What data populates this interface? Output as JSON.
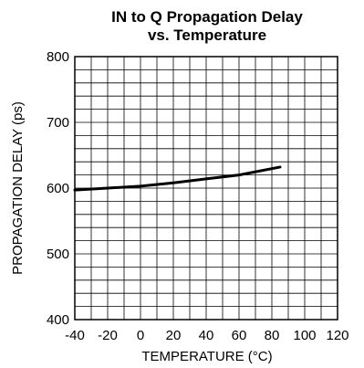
{
  "chart_data": {
    "type": "line",
    "title": "IN to Q Propagation Delay",
    "subtitle": "vs. Temperature",
    "xlabel": "TEMPERATURE (°C)",
    "ylabel": "PROPAGATION DELAY (ps)",
    "xlim": [
      -40,
      120
    ],
    "ylim": [
      400,
      800
    ],
    "x_ticks": [
      -40,
      -20,
      0,
      20,
      40,
      60,
      80,
      100,
      120
    ],
    "y_ticks": [
      400,
      500,
      600,
      700,
      800
    ],
    "x_tick_labels": [
      "-40",
      "-20",
      "0",
      "20",
      "40",
      "60",
      "80",
      "100",
      "120"
    ],
    "y_tick_labels": [
      "400",
      "500",
      "600",
      "700",
      "800"
    ],
    "x_minor_step": 10,
    "y_minor_step": 20,
    "grid": true,
    "series": [
      {
        "color": "#000000",
        "x": [
          -40,
          -20,
          0,
          20,
          40,
          60,
          85
        ],
        "y": [
          597,
          600,
          603,
          608,
          614,
          620,
          632
        ]
      }
    ]
  }
}
